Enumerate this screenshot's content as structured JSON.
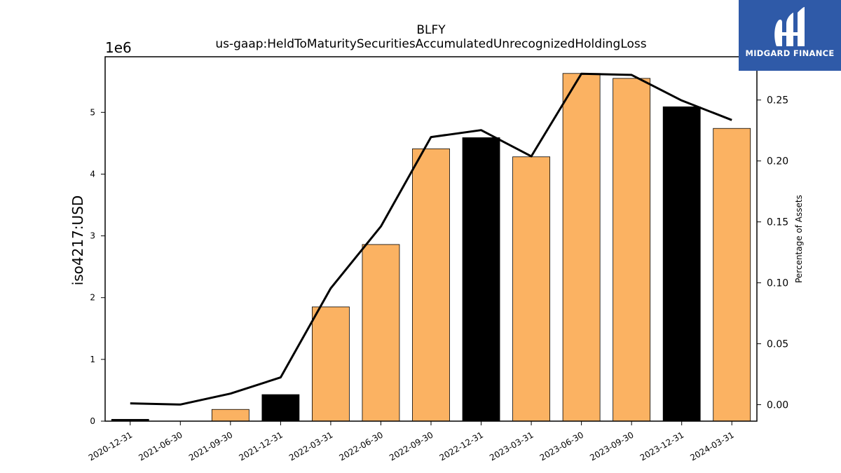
{
  "chart_data": {
    "type": "bar",
    "title": "BLFY",
    "subtitle": "us-gaap:HeldToMaturitySecuritiesAccumulatedUnrecognizedHoldingLoss",
    "ylabel": "iso4217:USD",
    "ylabel_right": "Percentage of Assets",
    "y_offset_label": "1e6",
    "ylim": [
      0,
      5900000
    ],
    "ylim_right": [
      -0.0135,
      0.2855
    ],
    "yticks": [
      0,
      1,
      2,
      3,
      4,
      5
    ],
    "yticks_right": [
      "0.00",
      "0.05",
      "0.10",
      "0.15",
      "0.20",
      "0.25"
    ],
    "grid": false,
    "categories": [
      "2020-12-31",
      "2021-06-30",
      "2021-09-30",
      "2021-12-31",
      "2022-03-31",
      "2022-06-30",
      "2022-09-30",
      "2022-12-31",
      "2023-03-31",
      "2023-06-30",
      "2023-09-30",
      "2023-12-31",
      "2024-03-31"
    ],
    "series": [
      {
        "values": [
          30000,
          0,
          190000,
          430000,
          1850000,
          2860000,
          4410000,
          4590000,
          4280000,
          5630000,
          5550000,
          5090000,
          4740000
        ],
        "bar_colors": [
          "#000000",
          "#fbb262",
          "#fbb262",
          "#000000",
          "#fbb262",
          "#fbb262",
          "#fbb262",
          "#000000",
          "#fbb262",
          "#fbb262",
          "#fbb262",
          "#000000",
          "#fbb262"
        ]
      },
      {
        "axis": "right",
        "type": "line",
        "color": "#000000",
        "values": [
          0.0011,
          0.0001,
          0.0091,
          0.0224,
          0.0955,
          0.1463,
          0.2196,
          0.2253,
          0.2038,
          0.2716,
          0.2706,
          0.2496,
          0.2336
        ]
      }
    ]
  },
  "logo": {
    "text": "MIDGARD FINANCE",
    "background": "#2f5aa8"
  }
}
